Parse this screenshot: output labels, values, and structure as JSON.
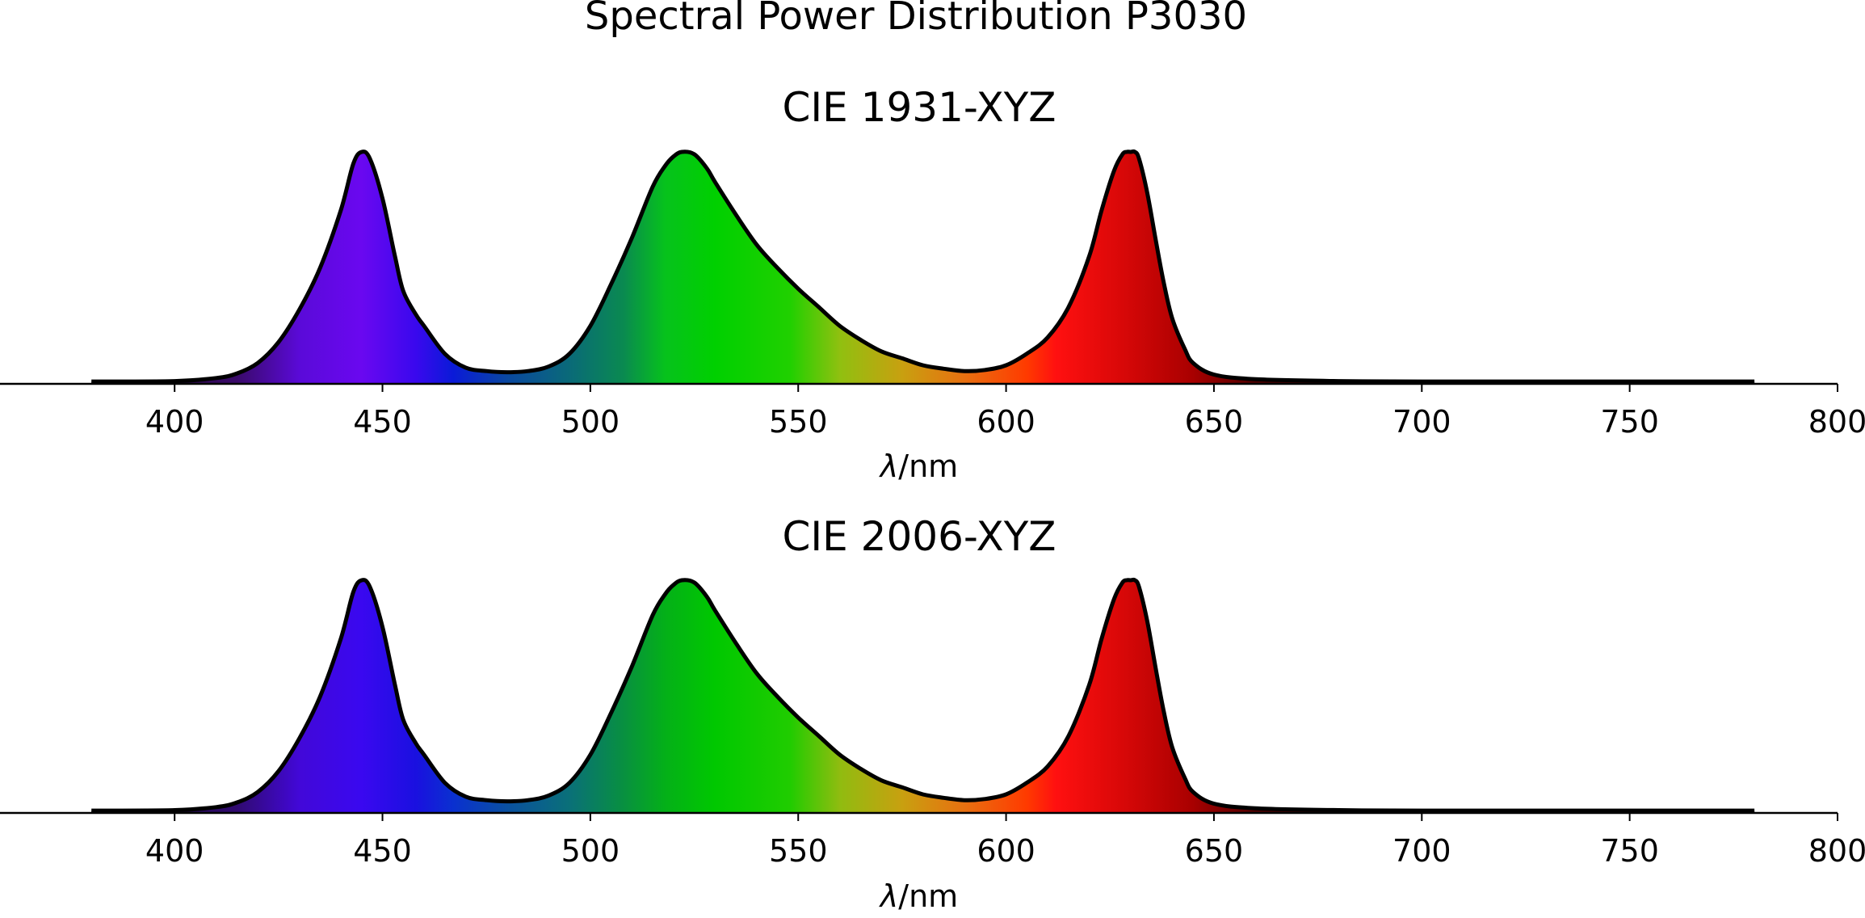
{
  "title": "Spectral Power Distribution P3030",
  "chart_data": [
    {
      "type": "area",
      "title": "CIE 1931-XYZ",
      "xlabel_symbol": "λ",
      "xlabel_unit": "/nm",
      "xlim": [
        358,
        800
      ],
      "ylim": [
        0,
        1
      ],
      "xticks": [
        "400",
        "450",
        "500",
        "550",
        "600",
        "650",
        "700",
        "750",
        "800"
      ],
      "grid": false,
      "legend": "none",
      "series": [
        {
          "x": [
            380,
            400,
            410,
            415,
            420,
            425,
            430,
            435,
            440,
            443,
            445,
            447,
            450,
            453,
            455,
            458,
            460,
            465,
            470,
            475,
            480,
            485,
            490,
            495,
            500,
            505,
            510,
            515,
            518,
            520,
            522,
            525,
            528,
            530,
            535,
            540,
            545,
            550,
            555,
            560,
            565,
            570,
            575,
            580,
            585,
            590,
            595,
            600,
            605,
            610,
            615,
            620,
            623,
            626,
            628,
            629,
            630,
            631,
            632,
            634,
            636,
            638,
            640,
            643,
            645,
            650,
            660,
            680,
            700,
            750,
            780
          ],
          "y": [
            0.01,
            0.012,
            0.025,
            0.045,
            0.09,
            0.18,
            0.32,
            0.5,
            0.75,
            0.95,
            1.0,
            0.97,
            0.8,
            0.55,
            0.4,
            0.3,
            0.25,
            0.13,
            0.07,
            0.055,
            0.05,
            0.055,
            0.075,
            0.13,
            0.25,
            0.43,
            0.63,
            0.85,
            0.94,
            0.98,
            1.0,
            0.99,
            0.93,
            0.87,
            0.73,
            0.6,
            0.5,
            0.41,
            0.33,
            0.25,
            0.19,
            0.14,
            0.11,
            0.08,
            0.065,
            0.055,
            0.06,
            0.08,
            0.13,
            0.2,
            0.33,
            0.55,
            0.75,
            0.92,
            0.99,
            1.0,
            1.0,
            1.0,
            0.97,
            0.82,
            0.62,
            0.43,
            0.28,
            0.15,
            0.09,
            0.04,
            0.02,
            0.012,
            0.01,
            0.01,
            0.01
          ]
        }
      ]
    },
    {
      "type": "area",
      "title": "CIE 2006-XYZ",
      "xlabel_symbol": "λ",
      "xlabel_unit": "/nm",
      "xlim": [
        358,
        800
      ],
      "ylim": [
        0,
        1
      ],
      "xticks": [
        "400",
        "450",
        "500",
        "550",
        "600",
        "650",
        "700",
        "750",
        "800"
      ],
      "grid": false,
      "legend": "none",
      "series": [
        {
          "x": [
            380,
            400,
            410,
            415,
            420,
            425,
            430,
            435,
            440,
            443,
            445,
            447,
            450,
            453,
            455,
            458,
            460,
            465,
            470,
            475,
            480,
            485,
            490,
            495,
            500,
            505,
            510,
            515,
            518,
            520,
            522,
            525,
            528,
            530,
            535,
            540,
            545,
            550,
            555,
            560,
            565,
            570,
            575,
            580,
            585,
            590,
            595,
            600,
            605,
            610,
            615,
            620,
            623,
            626,
            628,
            629,
            630,
            631,
            632,
            634,
            636,
            638,
            640,
            643,
            645,
            650,
            660,
            680,
            700,
            750,
            780
          ],
          "y": [
            0.01,
            0.012,
            0.025,
            0.045,
            0.09,
            0.18,
            0.32,
            0.5,
            0.75,
            0.95,
            1.0,
            0.97,
            0.8,
            0.55,
            0.4,
            0.3,
            0.25,
            0.13,
            0.07,
            0.055,
            0.05,
            0.055,
            0.075,
            0.13,
            0.25,
            0.43,
            0.63,
            0.85,
            0.94,
            0.98,
            1.0,
            0.99,
            0.93,
            0.87,
            0.73,
            0.6,
            0.5,
            0.41,
            0.33,
            0.25,
            0.19,
            0.14,
            0.11,
            0.08,
            0.065,
            0.055,
            0.06,
            0.08,
            0.13,
            0.2,
            0.33,
            0.55,
            0.75,
            0.92,
            0.99,
            1.0,
            1.0,
            1.0,
            0.97,
            0.82,
            0.62,
            0.43,
            0.28,
            0.15,
            0.09,
            0.04,
            0.02,
            0.012,
            0.01,
            0.01,
            0.01
          ]
        }
      ]
    }
  ],
  "colors": {
    "outline": "#000000",
    "spectrum_1931": [
      {
        "nm": 380,
        "color": "#1a0b20"
      },
      {
        "nm": 415,
        "color": "#3a0a6a"
      },
      {
        "nm": 430,
        "color": "#5a0ad8"
      },
      {
        "nm": 445,
        "color": "#6a08f0"
      },
      {
        "nm": 458,
        "color": "#3a08ee"
      },
      {
        "nm": 467,
        "color": "#0a1ad8"
      },
      {
        "nm": 480,
        "color": "#0a48a0"
      },
      {
        "nm": 495,
        "color": "#0a6a78"
      },
      {
        "nm": 508,
        "color": "#0a8a50"
      },
      {
        "nm": 518,
        "color": "#06c21c"
      },
      {
        "nm": 530,
        "color": "#00d000"
      },
      {
        "nm": 548,
        "color": "#20d000"
      },
      {
        "nm": 560,
        "color": "#90c010"
      },
      {
        "nm": 575,
        "color": "#c8a010"
      },
      {
        "nm": 590,
        "color": "#e87010"
      },
      {
        "nm": 605,
        "color": "#ff3a00"
      },
      {
        "nm": 612,
        "color": "#ff1010"
      },
      {
        "nm": 628,
        "color": "#d80808"
      },
      {
        "nm": 645,
        "color": "#a80000"
      },
      {
        "nm": 660,
        "color": "#500000"
      },
      {
        "nm": 700,
        "color": "#1a0000"
      },
      {
        "nm": 780,
        "color": "#000000"
      }
    ],
    "spectrum_2006": [
      {
        "nm": 380,
        "color": "#150a25"
      },
      {
        "nm": 415,
        "color": "#300a70"
      },
      {
        "nm": 430,
        "color": "#4208d8"
      },
      {
        "nm": 445,
        "color": "#3a08f0"
      },
      {
        "nm": 458,
        "color": "#1a10e0"
      },
      {
        "nm": 467,
        "color": "#0a30d0"
      },
      {
        "nm": 480,
        "color": "#0a50a0"
      },
      {
        "nm": 495,
        "color": "#0a7078"
      },
      {
        "nm": 508,
        "color": "#089040"
      },
      {
        "nm": 518,
        "color": "#04b018"
      },
      {
        "nm": 530,
        "color": "#00c800"
      },
      {
        "nm": 548,
        "color": "#20cc00"
      },
      {
        "nm": 560,
        "color": "#90bc10"
      },
      {
        "nm": 575,
        "color": "#c8a010"
      },
      {
        "nm": 590,
        "color": "#e87010"
      },
      {
        "nm": 605,
        "color": "#ff3a00"
      },
      {
        "nm": 612,
        "color": "#ff1010"
      },
      {
        "nm": 628,
        "color": "#d80808"
      },
      {
        "nm": 645,
        "color": "#a80000"
      },
      {
        "nm": 660,
        "color": "#500000"
      },
      {
        "nm": 700,
        "color": "#1a0000"
      },
      {
        "nm": 780,
        "color": "#000000"
      }
    ]
  }
}
